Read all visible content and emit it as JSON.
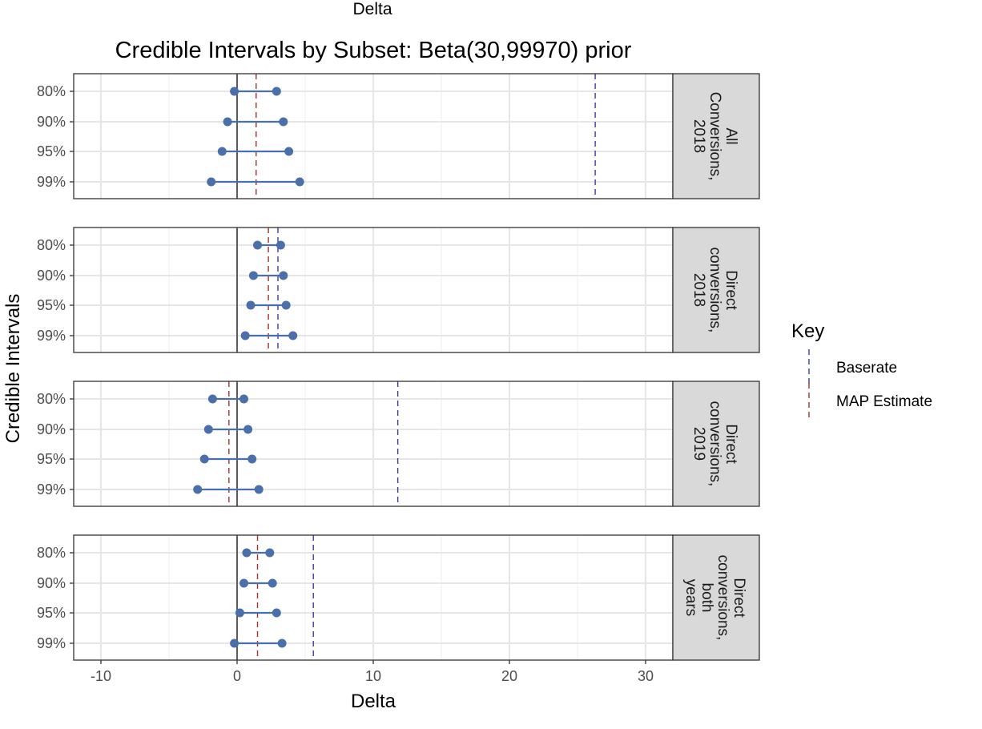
{
  "chart_data": {
    "type": "line",
    "top_label": "Delta",
    "title": "Credible Intervals by Subset: Beta(30,99970) prior",
    "xlabel": "Delta",
    "ylabel": "Credible Intervals",
    "xlim": [
      -12,
      32
    ],
    "x_ticks": [
      -10,
      0,
      10,
      20,
      30
    ],
    "x_tick_labels": [
      "-10",
      "0",
      "10",
      "20",
      "30"
    ],
    "categories": [
      "80%",
      "90%",
      "95%",
      "99%"
    ],
    "zero_line": 0,
    "grid": true,
    "colors": {
      "interval": "#4a6fab",
      "baserate": "#3b3b9c",
      "map": "#a0322b"
    },
    "legend": {
      "title": "Key",
      "placement": "right",
      "entries": [
        {
          "label": "Baserate",
          "color": "#3b3b9c"
        },
        {
          "label": "MAP Estimate",
          "color": "#a0322b"
        }
      ]
    },
    "panels": [
      {
        "strip_lines": [
          "All",
          "Conversions,",
          "2018"
        ],
        "baserate": 26.3,
        "map": 1.4,
        "intervals": [
          {
            "level": "80%",
            "low": -0.2,
            "high": 2.9
          },
          {
            "level": "90%",
            "low": -0.7,
            "high": 3.4
          },
          {
            "level": "95%",
            "low": -1.1,
            "high": 3.8
          },
          {
            "level": "99%",
            "low": -1.9,
            "high": 4.6
          }
        ]
      },
      {
        "strip_lines": [
          "Direct",
          "conversions,",
          "2018"
        ],
        "baserate": 3.0,
        "map": 2.3,
        "intervals": [
          {
            "level": "80%",
            "low": 1.5,
            "high": 3.2
          },
          {
            "level": "90%",
            "low": 1.2,
            "high": 3.4
          },
          {
            "level": "95%",
            "low": 1.0,
            "high": 3.6
          },
          {
            "level": "99%",
            "low": 0.6,
            "high": 4.1
          }
        ]
      },
      {
        "strip_lines": [
          "Direct",
          "conversions,",
          "2019"
        ],
        "baserate": 11.8,
        "map": -0.6,
        "intervals": [
          {
            "level": "80%",
            "low": -1.8,
            "high": 0.5
          },
          {
            "level": "90%",
            "low": -2.1,
            "high": 0.8
          },
          {
            "level": "95%",
            "low": -2.4,
            "high": 1.1
          },
          {
            "level": "99%",
            "low": -2.9,
            "high": 1.6
          }
        ]
      },
      {
        "strip_lines": [
          "Direct",
          "conversions,",
          "both",
          "years"
        ],
        "baserate": 5.6,
        "map": 1.5,
        "intervals": [
          {
            "level": "80%",
            "low": 0.7,
            "high": 2.4
          },
          {
            "level": "90%",
            "low": 0.5,
            "high": 2.6
          },
          {
            "level": "95%",
            "low": 0.2,
            "high": 2.9
          },
          {
            "level": "99%",
            "low": -0.2,
            "high": 3.3
          }
        ]
      }
    ]
  }
}
